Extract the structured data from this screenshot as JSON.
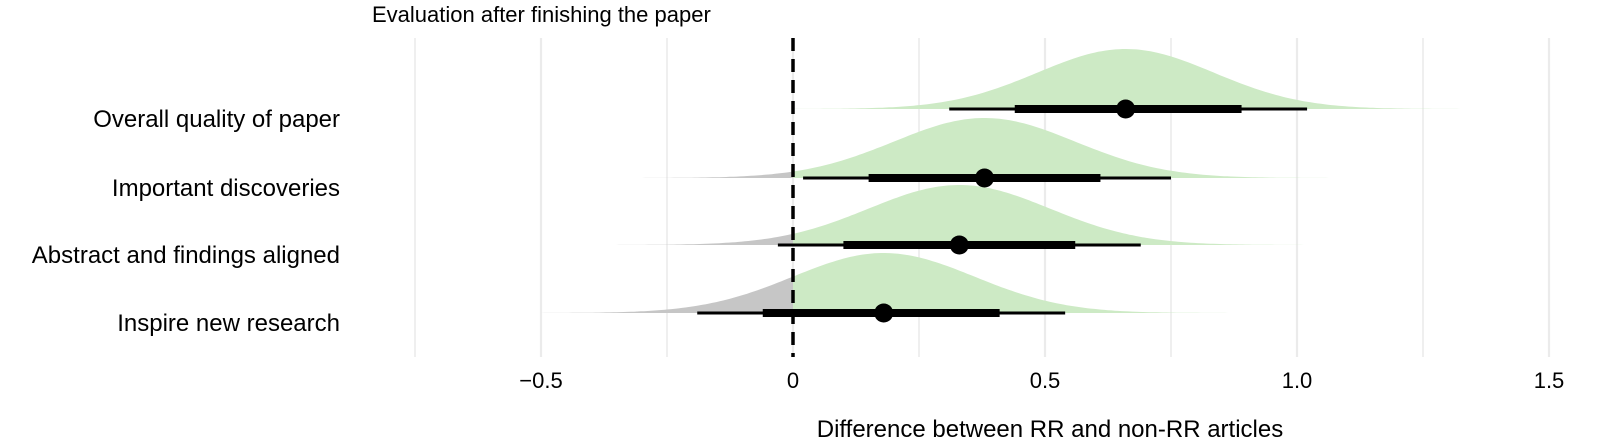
{
  "chart_data": {
    "type": "ridgeline",
    "title": "Evaluation after finishing the paper",
    "xlabel": "Difference between RR and non-RR articles",
    "ylabel": "",
    "xlim": [
      -0.75,
      1.5
    ],
    "xticks": [
      -0.5,
      0,
      0.5,
      1.0,
      1.5
    ],
    "xtick_labels": [
      "−0.5",
      "0",
      "0.5",
      "1.0",
      "1.5"
    ],
    "grid": "vertical",
    "reference_line": 0,
    "colors": {
      "positive_fill": "#cdeac5",
      "negative_fill": "#c6c6c6",
      "interval": "#000000",
      "grid": "#ebebeb"
    },
    "categories": [
      {
        "label": "Overall quality of paper",
        "point": 0.66,
        "interval_66": [
          0.44,
          0.89
        ],
        "interval_95": [
          0.31,
          1.02
        ],
        "density_range": [
          -0.12,
          1.4
        ],
        "density_sd": 0.175
      },
      {
        "label": "Important discoveries",
        "point": 0.38,
        "interval_66": [
          0.15,
          0.61
        ],
        "interval_95": [
          0.02,
          0.75
        ],
        "density_range": [
          -0.39,
          1.14
        ],
        "density_sd": 0.18
      },
      {
        "label": "Abstract and findings aligned",
        "point": 0.33,
        "interval_66": [
          0.1,
          0.56
        ],
        "interval_95": [
          -0.03,
          0.69
        ],
        "density_range": [
          -0.39,
          1.02
        ],
        "density_sd": 0.18
      },
      {
        "label": "Inspire new research",
        "point": 0.18,
        "interval_66": [
          -0.06,
          0.41
        ],
        "interval_95": [
          -0.19,
          0.54
        ],
        "density_range": [
          -0.5,
          1.0
        ],
        "density_sd": 0.18
      }
    ]
  }
}
